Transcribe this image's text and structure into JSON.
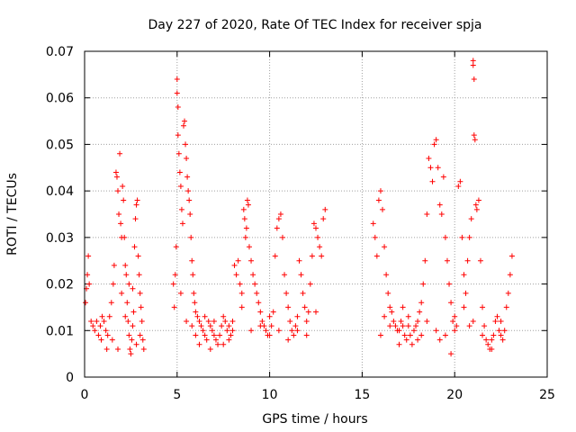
{
  "chart_data": {
    "type": "scatter",
    "title": "Day 227 of 2020, Rate Of TEC Index for receiver spja",
    "xlabel": "GPS time / hours",
    "ylabel": "ROTI / TECUs",
    "xlim": [
      0,
      25
    ],
    "ylim": [
      0,
      0.07
    ],
    "xticks": [
      0,
      5,
      10,
      15,
      20,
      25
    ],
    "yticks": [
      0,
      0.01,
      0.02,
      0.03,
      0.04,
      0.05,
      0.06,
      0.07
    ],
    "grid": true,
    "marker": "plus",
    "color": "#ff0000",
    "series": [
      {
        "points": [
          [
            0.05,
            0.016
          ],
          [
            0.1,
            0.019
          ],
          [
            0.15,
            0.022
          ],
          [
            0.2,
            0.026
          ],
          [
            0.25,
            0.02
          ],
          [
            0.35,
            0.012
          ],
          [
            0.45,
            0.011
          ],
          [
            0.55,
            0.01
          ],
          [
            0.65,
            0.012
          ],
          [
            0.75,
            0.009
          ],
          [
            0.85,
            0.011
          ],
          [
            0.95,
            0.013
          ],
          [
            1.05,
            0.012
          ],
          [
            1.15,
            0.01
          ],
          [
            1.25,
            0.009
          ],
          [
            1.35,
            0.013
          ],
          [
            1.45,
            0.016
          ],
          [
            1.55,
            0.02
          ],
          [
            1.6,
            0.024
          ],
          [
            1.7,
            0.044
          ],
          [
            1.75,
            0.043
          ],
          [
            1.8,
            0.04
          ],
          [
            1.85,
            0.035
          ],
          [
            1.9,
            0.048
          ],
          [
            1.95,
            0.033
          ],
          [
            2.0,
            0.03
          ],
          [
            2.05,
            0.041
          ],
          [
            2.1,
            0.038
          ],
          [
            2.15,
            0.03
          ],
          [
            2.2,
            0.024
          ],
          [
            2.25,
            0.022
          ],
          [
            2.3,
            0.016
          ],
          [
            2.35,
            0.012
          ],
          [
            2.4,
            0.009
          ],
          [
            2.45,
            0.006
          ],
          [
            2.5,
            0.005
          ],
          [
            2.55,
            0.008
          ],
          [
            2.6,
            0.011
          ],
          [
            2.65,
            0.014
          ],
          [
            2.7,
            0.028
          ],
          [
            2.75,
            0.034
          ],
          [
            2.8,
            0.037
          ],
          [
            2.85,
            0.038
          ],
          [
            2.9,
            0.026
          ],
          [
            2.95,
            0.022
          ],
          [
            3.0,
            0.018
          ],
          [
            3.05,
            0.015
          ],
          [
            3.1,
            0.012
          ],
          [
            3.15,
            0.008
          ],
          [
            3.2,
            0.006
          ],
          [
            1.5,
            0.008
          ],
          [
            1.8,
            0.006
          ],
          [
            2.0,
            0.018
          ],
          [
            2.2,
            0.013
          ],
          [
            2.4,
            0.02
          ],
          [
            2.6,
            0.019
          ],
          [
            2.8,
            0.007
          ],
          [
            3.0,
            0.009
          ],
          [
            1.2,
            0.006
          ],
          [
            0.9,
            0.008
          ],
          [
            4.8,
            0.02
          ],
          [
            4.85,
            0.015
          ],
          [
            4.9,
            0.022
          ],
          [
            4.95,
            0.028
          ],
          [
            5.0,
            0.064
          ],
          [
            5.0,
            0.061
          ],
          [
            5.05,
            0.058
          ],
          [
            5.05,
            0.052
          ],
          [
            5.1,
            0.048
          ],
          [
            5.15,
            0.044
          ],
          [
            5.2,
            0.041
          ],
          [
            5.25,
            0.036
          ],
          [
            5.3,
            0.033
          ],
          [
            5.35,
            0.054
          ],
          [
            5.4,
            0.055
          ],
          [
            5.45,
            0.05
          ],
          [
            5.5,
            0.047
          ],
          [
            5.55,
            0.043
          ],
          [
            5.6,
            0.04
          ],
          [
            5.65,
            0.038
          ],
          [
            5.7,
            0.035
          ],
          [
            5.75,
            0.03
          ],
          [
            5.8,
            0.025
          ],
          [
            5.85,
            0.022
          ],
          [
            5.9,
            0.018
          ],
          [
            5.95,
            0.016
          ],
          [
            6.0,
            0.014
          ],
          [
            6.1,
            0.013
          ],
          [
            6.2,
            0.012
          ],
          [
            6.3,
            0.011
          ],
          [
            6.4,
            0.01
          ],
          [
            6.5,
            0.009
          ],
          [
            6.6,
            0.008
          ],
          [
            6.7,
            0.012
          ],
          [
            6.8,
            0.011
          ],
          [
            6.9,
            0.01
          ],
          [
            7.0,
            0.009
          ],
          [
            7.1,
            0.008
          ],
          [
            7.2,
            0.007
          ],
          [
            7.3,
            0.009
          ],
          [
            7.4,
            0.011
          ],
          [
            7.5,
            0.013
          ],
          [
            7.6,
            0.012
          ],
          [
            7.7,
            0.01
          ],
          [
            7.8,
            0.008
          ],
          [
            7.9,
            0.009
          ],
          [
            8.0,
            0.012
          ],
          [
            8.1,
            0.024
          ],
          [
            8.2,
            0.022
          ],
          [
            8.3,
            0.025
          ],
          [
            8.4,
            0.02
          ],
          [
            8.5,
            0.018
          ],
          [
            8.6,
            0.036
          ],
          [
            8.65,
            0.034
          ],
          [
            8.7,
            0.03
          ],
          [
            8.75,
            0.032
          ],
          [
            8.8,
            0.038
          ],
          [
            8.85,
            0.037
          ],
          [
            8.9,
            0.028
          ],
          [
            9.0,
            0.025
          ],
          [
            9.1,
            0.022
          ],
          [
            9.2,
            0.02
          ],
          [
            9.3,
            0.018
          ],
          [
            9.4,
            0.016
          ],
          [
            9.5,
            0.014
          ],
          [
            9.6,
            0.012
          ],
          [
            9.7,
            0.011
          ],
          [
            9.8,
            0.01
          ],
          [
            9.9,
            0.009
          ],
          [
            10.0,
            0.009
          ],
          [
            10.1,
            0.011
          ],
          [
            10.2,
            0.014
          ],
          [
            10.3,
            0.026
          ],
          [
            10.4,
            0.032
          ],
          [
            10.5,
            0.034
          ],
          [
            10.6,
            0.035
          ],
          [
            10.7,
            0.03
          ],
          [
            10.8,
            0.022
          ],
          [
            10.9,
            0.018
          ],
          [
            11.0,
            0.015
          ],
          [
            11.1,
            0.012
          ],
          [
            11.2,
            0.01
          ],
          [
            11.3,
            0.009
          ],
          [
            11.4,
            0.011
          ],
          [
            11.5,
            0.013
          ],
          [
            11.6,
            0.025
          ],
          [
            11.7,
            0.022
          ],
          [
            11.8,
            0.018
          ],
          [
            11.9,
            0.015
          ],
          [
            12.0,
            0.012
          ],
          [
            12.1,
            0.014
          ],
          [
            12.2,
            0.02
          ],
          [
            12.3,
            0.026
          ],
          [
            12.4,
            0.033
          ],
          [
            12.5,
            0.032
          ],
          [
            12.6,
            0.03
          ],
          [
            12.7,
            0.028
          ],
          [
            12.8,
            0.026
          ],
          [
            12.9,
            0.034
          ],
          [
            13.0,
            0.036
          ],
          [
            6.0,
            0.009
          ],
          [
            6.5,
            0.013
          ],
          [
            7.0,
            0.012
          ],
          [
            7.5,
            0.007
          ],
          [
            8.0,
            0.01
          ],
          [
            8.5,
            0.015
          ],
          [
            9.0,
            0.01
          ],
          [
            9.5,
            0.011
          ],
          [
            10.0,
            0.013
          ],
          [
            10.5,
            0.01
          ],
          [
            11.0,
            0.008
          ],
          [
            11.5,
            0.01
          ],
          [
            12.0,
            0.009
          ],
          [
            12.5,
            0.014
          ],
          [
            5.5,
            0.012
          ],
          [
            5.2,
            0.018
          ],
          [
            5.8,
            0.011
          ],
          [
            6.2,
            0.007
          ],
          [
            6.8,
            0.006
          ],
          [
            7.8,
            0.011
          ],
          [
            15.6,
            0.033
          ],
          [
            15.7,
            0.03
          ],
          [
            15.8,
            0.026
          ],
          [
            15.9,
            0.038
          ],
          [
            16.0,
            0.04
          ],
          [
            16.1,
            0.036
          ],
          [
            16.2,
            0.028
          ],
          [
            16.3,
            0.022
          ],
          [
            16.4,
            0.018
          ],
          [
            16.5,
            0.015
          ],
          [
            16.6,
            0.014
          ],
          [
            16.7,
            0.012
          ],
          [
            16.8,
            0.011
          ],
          [
            16.9,
            0.01
          ],
          [
            17.0,
            0.01
          ],
          [
            17.1,
            0.012
          ],
          [
            17.2,
            0.011
          ],
          [
            17.3,
            0.009
          ],
          [
            17.4,
            0.008
          ],
          [
            17.5,
            0.011
          ],
          [
            17.6,
            0.009
          ],
          [
            17.7,
            0.007
          ],
          [
            17.8,
            0.01
          ],
          [
            17.9,
            0.011
          ],
          [
            18.0,
            0.012
          ],
          [
            18.1,
            0.014
          ],
          [
            18.2,
            0.016
          ],
          [
            18.3,
            0.02
          ],
          [
            18.4,
            0.025
          ],
          [
            18.5,
            0.035
          ],
          [
            18.6,
            0.047
          ],
          [
            18.7,
            0.045
          ],
          [
            18.8,
            0.042
          ],
          [
            18.9,
            0.05
          ],
          [
            19.0,
            0.051
          ],
          [
            19.1,
            0.045
          ],
          [
            19.2,
            0.037
          ],
          [
            19.3,
            0.035
          ],
          [
            19.4,
            0.043
          ],
          [
            19.5,
            0.03
          ],
          [
            19.6,
            0.025
          ],
          [
            19.7,
            0.02
          ],
          [
            19.8,
            0.016
          ],
          [
            19.9,
            0.012
          ],
          [
            20.0,
            0.01
          ],
          [
            20.1,
            0.011
          ],
          [
            20.2,
            0.041
          ],
          [
            20.3,
            0.042
          ],
          [
            20.4,
            0.03
          ],
          [
            20.5,
            0.022
          ],
          [
            20.6,
            0.018
          ],
          [
            20.7,
            0.025
          ],
          [
            20.8,
            0.03
          ],
          [
            20.9,
            0.034
          ],
          [
            21.0,
            0.067
          ],
          [
            21.0,
            0.068
          ],
          [
            21.05,
            0.064
          ],
          [
            21.05,
            0.052
          ],
          [
            21.1,
            0.051
          ],
          [
            21.15,
            0.037
          ],
          [
            21.2,
            0.036
          ],
          [
            21.3,
            0.038
          ],
          [
            21.4,
            0.025
          ],
          [
            21.5,
            0.015
          ],
          [
            21.6,
            0.011
          ],
          [
            21.7,
            0.008
          ],
          [
            21.8,
            0.007
          ],
          [
            21.9,
            0.006
          ],
          [
            22.0,
            0.008
          ],
          [
            22.1,
            0.009
          ],
          [
            22.2,
            0.012
          ],
          [
            22.3,
            0.013
          ],
          [
            22.4,
            0.01
          ],
          [
            22.5,
            0.009
          ],
          [
            22.6,
            0.008
          ],
          [
            22.7,
            0.01
          ],
          [
            22.8,
            0.015
          ],
          [
            22.9,
            0.018
          ],
          [
            23.0,
            0.022
          ],
          [
            23.1,
            0.026
          ],
          [
            16.0,
            0.009
          ],
          [
            16.5,
            0.011
          ],
          [
            17.0,
            0.007
          ],
          [
            17.5,
            0.013
          ],
          [
            18.0,
            0.008
          ],
          [
            18.5,
            0.012
          ],
          [
            19.0,
            0.01
          ],
          [
            19.5,
            0.009
          ],
          [
            20.0,
            0.013
          ],
          [
            20.5,
            0.015
          ],
          [
            21.0,
            0.012
          ],
          [
            21.5,
            0.009
          ],
          [
            22.0,
            0.006
          ],
          [
            22.5,
            0.012
          ],
          [
            16.2,
            0.013
          ],
          [
            17.2,
            0.015
          ],
          [
            18.2,
            0.009
          ],
          [
            19.2,
            0.008
          ],
          [
            19.8,
            0.005
          ],
          [
            20.8,
            0.011
          ]
        ]
      }
    ]
  }
}
